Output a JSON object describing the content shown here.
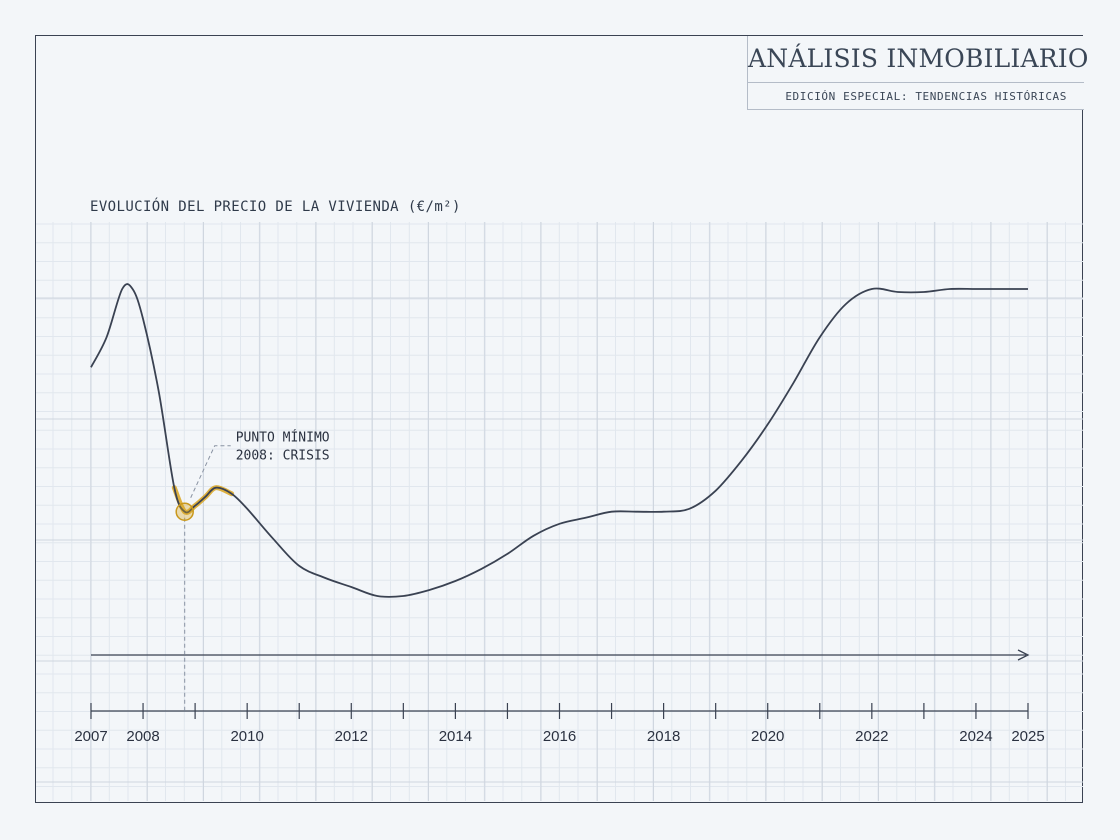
{
  "header": {
    "title": "ANÁLISIS INMOBILIARIO",
    "subtitle": "EDICIÓN ESPECIAL: TENDENCIAS HISTÓRICAS"
  },
  "colors": {
    "background": "#f3f6f9",
    "line": "#3a4252",
    "highlight": "#d9a520",
    "grid": "#cfd6df"
  },
  "chart_data": {
    "type": "line",
    "title": "EVOLUCIÓN DEL PRECIO DE LA VIVIENDA (€/m²)",
    "xlabel": "",
    "ylabel": "",
    "x_ticks": [
      2007,
      2008,
      2010,
      2012,
      2014,
      2016,
      2018,
      2020,
      2022,
      2024,
      2025
    ],
    "xlim": [
      2007,
      2025
    ],
    "y_axis_labels_shown": false,
    "grid": true,
    "series": [
      {
        "points": [
          [
            2007.0,
            0.74
          ],
          [
            2007.3,
            0.84
          ],
          [
            2007.6,
            1.0
          ],
          [
            2007.8,
            1.0
          ],
          [
            2008.0,
            0.9
          ],
          [
            2008.3,
            0.66
          ],
          [
            2008.6,
            0.34
          ],
          [
            2008.8,
            0.26
          ],
          [
            2009.0,
            0.28
          ],
          [
            2009.2,
            0.31
          ],
          [
            2009.4,
            0.34
          ],
          [
            2009.7,
            0.32
          ],
          [
            2010.0,
            0.27
          ],
          [
            2010.5,
            0.17
          ],
          [
            2011.0,
            0.08
          ],
          [
            2011.5,
            0.04
          ],
          [
            2012.0,
            0.01
          ],
          [
            2012.5,
            -0.02
          ],
          [
            2013.0,
            -0.02
          ],
          [
            2013.5,
            0.0
          ],
          [
            2014.0,
            0.03
          ],
          [
            2014.5,
            0.07
          ],
          [
            2015.0,
            0.12
          ],
          [
            2015.5,
            0.18
          ],
          [
            2016.0,
            0.22
          ],
          [
            2016.5,
            0.24
          ],
          [
            2017.0,
            0.26
          ],
          [
            2017.5,
            0.26
          ],
          [
            2018.0,
            0.26
          ],
          [
            2018.5,
            0.27
          ],
          [
            2019.0,
            0.33
          ],
          [
            2019.5,
            0.43
          ],
          [
            2020.0,
            0.55
          ],
          [
            2020.5,
            0.69
          ],
          [
            2021.0,
            0.84
          ],
          [
            2021.5,
            0.95
          ],
          [
            2022.0,
            1.0
          ],
          [
            2022.5,
            0.99
          ],
          [
            2023.0,
            0.99
          ],
          [
            2023.5,
            1.0
          ],
          [
            2024.0,
            1.0
          ],
          [
            2024.5,
            1.0
          ],
          [
            2025.0,
            1.0
          ]
        ],
        "highlight_range": [
          2008.6,
          2009.8
        ]
      }
    ],
    "annotations": [
      {
        "text_line1": "PUNTO MÍNIMO",
        "text_line2": "2008: CRISIS",
        "x": 2008.8,
        "y": 0.26
      }
    ]
  }
}
